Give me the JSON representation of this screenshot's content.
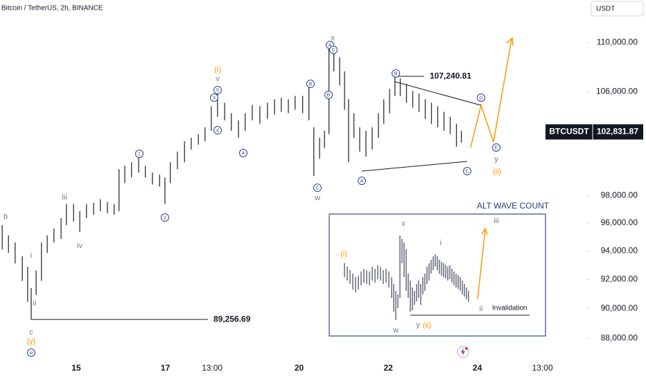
{
  "header": {
    "title": "Bitcoin / TetherUS, 2h, BINANCE",
    "currency": "USDT"
  },
  "chart_data": {
    "type": "ohlc",
    "log_scale": true,
    "color": "#2a2e39",
    "x": [
      13.34,
      13.48,
      13.63,
      13.79,
      13.91,
      13.99,
      14.1,
      14.22,
      14.35,
      14.5,
      14.66,
      14.78,
      14.94,
      15.08,
      15.23,
      15.39,
      15.54,
      15.7,
      15.85,
      15.96,
      16.09,
      16.24,
      16.4,
      16.55,
      16.71,
      16.87,
      16.99,
      17.11,
      17.27,
      17.43,
      17.58,
      17.74,
      17.89,
      18.03,
      18.17,
      18.33,
      18.48,
      18.64,
      18.79,
      18.95,
      19.12,
      19.29,
      19.45,
      19.6,
      19.76,
      19.91,
      20.08,
      20.22,
      20.33,
      20.46,
      20.57,
      20.67,
      20.78,
      20.91,
      21.02,
      21.11,
      21.23,
      21.36,
      21.5,
      21.64,
      21.78,
      21.9,
      22.03,
      22.15,
      22.27,
      22.41,
      22.55,
      22.69,
      22.83,
      22.97,
      23.11,
      23.25,
      23.39,
      23.53,
      23.64
    ],
    "high": [
      95850,
      95100,
      94600,
      93610,
      92870,
      91400,
      92620,
      94600,
      95100,
      95600,
      96350,
      97380,
      97380,
      96860,
      97380,
      97480,
      97740,
      97530,
      97380,
      99980,
      100240,
      100500,
      100930,
      100240,
      99720,
      99560,
      99350,
      100500,
      101310,
      102110,
      102380,
      102650,
      103190,
      104840,
      105950,
      105120,
      104290,
      103740,
      104290,
      104950,
      104840,
      105120,
      105400,
      105510,
      105400,
      105670,
      105670,
      106510,
      103190,
      102380,
      102920,
      109650,
      109400,
      108800,
      107640,
      105400,
      104290,
      103190,
      102920,
      103190,
      104290,
      105400,
      106230,
      107240.81,
      107080,
      106620,
      106060,
      105840,
      105400,
      105120,
      104840,
      104400,
      104010,
      103460,
      102920
    ],
    "low": [
      94100,
      93850,
      93110,
      91890,
      90450,
      89256.69,
      90920,
      91890,
      93850,
      94600,
      94850,
      95850,
      96100,
      95350,
      96350,
      96600,
      96860,
      96700,
      96600,
      96860,
      98930,
      99350,
      99720,
      99350,
      98830,
      98670,
      97380,
      98930,
      99980,
      100500,
      101470,
      101840,
      102110,
      102920,
      104010,
      103740,
      102920,
      102380,
      102920,
      103740,
      103460,
      103850,
      104180,
      104400,
      104290,
      104570,
      104290,
      103740,
      99460,
      100770,
      101580,
      102650,
      107640,
      106510,
      104570,
      100500,
      102380,
      101310,
      100930,
      101470,
      102380,
      103460,
      104290,
      105670,
      105670,
      105120,
      104730,
      104400,
      103850,
      103460,
      103190,
      102920,
      102650,
      101680,
      102000
    ],
    "xlim": [
      13.29,
      26.43
    ],
    "xticks": [
      {
        "value": 15,
        "label": "15"
      },
      {
        "value": 17,
        "label": "17"
      },
      {
        "value": 18.05,
        "label": "13:00"
      },
      {
        "value": 20,
        "label": "20"
      },
      {
        "value": 22,
        "label": "22"
      },
      {
        "value": 24,
        "label": "24"
      },
      {
        "value": 25.46,
        "label": "13:00"
      }
    ],
    "ylim": [
      86550,
      113600
    ],
    "yticks": [
      {
        "value": 110000,
        "label": "110,000.00"
      },
      {
        "value": 106000,
        "label": "106,000.00"
      },
      {
        "value": 98000,
        "label": "98,000.00"
      },
      {
        "value": 96000,
        "label": "96,000.00"
      },
      {
        "value": 94000,
        "label": "94,000.00"
      },
      {
        "value": 92000,
        "label": "92,000.00"
      },
      {
        "value": 90000,
        "label": "90,000.00"
      },
      {
        "value": 88000,
        "label": "88,000.00"
      }
    ],
    "last_price": {
      "symbol": "BTCUSDT",
      "value": 102831.87,
      "label": "102,831.87"
    },
    "levels": [
      {
        "value": 107240.81,
        "label": "107,240.81"
      },
      {
        "value": 89256.69,
        "label": "89,256.69"
      }
    ],
    "annotations": [
      {
        "text": "b",
        "style": "gray"
      },
      {
        "text": "i",
        "style": "gray"
      },
      {
        "text": "ii",
        "style": "gray"
      },
      {
        "text": "c",
        "style": "gray"
      },
      {
        "text": "(y)",
        "style": "orange"
      },
      {
        "text": "iv",
        "style": "circled"
      },
      {
        "text": "iii",
        "style": "gray"
      },
      {
        "text": "iv",
        "style": "gray"
      },
      {
        "text": "1",
        "style": "circled"
      },
      {
        "text": "2",
        "style": "circled"
      },
      {
        "text": "3",
        "style": "circled"
      },
      {
        "text": "4",
        "style": "circled"
      },
      {
        "text": "5",
        "style": "circled"
      },
      {
        "text": "v",
        "style": "gray"
      },
      {
        "text": "(i)",
        "style": "orange"
      },
      {
        "text": "A",
        "style": "circled"
      },
      {
        "text": "B",
        "style": "circled"
      },
      {
        "text": "B",
        "style": "circled"
      },
      {
        "text": "A",
        "style": "circled"
      },
      {
        "text": "C",
        "style": "circled"
      },
      {
        "text": "x",
        "style": "gray"
      },
      {
        "text": "C",
        "style": "circled"
      },
      {
        "text": "w",
        "style": "gray"
      },
      {
        "text": "B",
        "style": "circled"
      },
      {
        "text": "A",
        "style": "circled"
      },
      {
        "text": "C",
        "style": "circled"
      },
      {
        "text": "D",
        "style": "circled"
      },
      {
        "text": "E",
        "style": "circled"
      },
      {
        "text": "y",
        "style": "gray"
      },
      {
        "text": "(ii)",
        "style": "orange"
      }
    ]
  },
  "inset": {
    "title": "ALT WAVE COUNT",
    "labels": [
      {
        "text": "(i)",
        "style": "orange"
      },
      {
        "text": "x",
        "style": "gray"
      },
      {
        "text": "i",
        "style": "gray"
      },
      {
        "text": "iii",
        "style": "gray"
      },
      {
        "text": "w",
        "style": "gray"
      },
      {
        "text": "y",
        "style": "gray"
      },
      {
        "text": "(ii)",
        "style": "orange"
      },
      {
        "text": "ii",
        "style": "gray"
      }
    ],
    "invalidation": "Invalidation"
  }
}
